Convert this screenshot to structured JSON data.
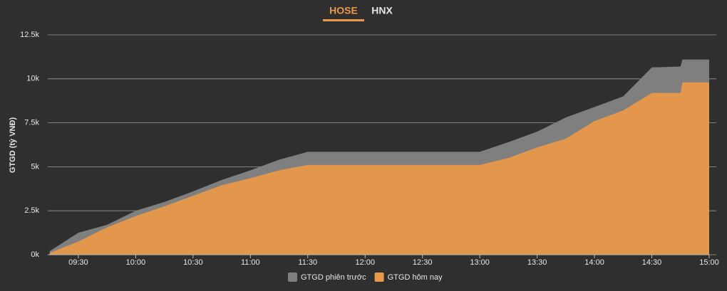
{
  "tabs": [
    "HOSE",
    "HNX"
  ],
  "chart_data": {
    "type": "area",
    "y_label": "GTGD (tỷ VNĐ)",
    "x": [
      "09:15",
      "09:30",
      "09:45",
      "10:00",
      "10:15",
      "10:30",
      "10:45",
      "11:00",
      "11:15",
      "11:30",
      "13:00",
      "13:15",
      "13:30",
      "13:45",
      "14:00",
      "14:15",
      "14:30",
      "14:45",
      "14:46",
      "15:00"
    ],
    "xlim": [
      "09:14",
      "15:00"
    ],
    "xticks": [
      "09:30",
      "10:00",
      "10:30",
      "11:00",
      "11:30",
      "12:00",
      "12:30",
      "13:00",
      "13:30",
      "14:00",
      "14:30",
      "15:00"
    ],
    "ylim": [
      0,
      12500
    ],
    "yticks": [
      {
        "value": 0,
        "label": "0k"
      },
      {
        "value": 2500,
        "label": "2.5k"
      },
      {
        "value": 5000,
        "label": "5k"
      },
      {
        "value": 7500,
        "label": "7.5k"
      },
      {
        "value": 10000,
        "label": "10k"
      },
      {
        "value": 12500,
        "label": "12.5k"
      }
    ],
    "grid": true,
    "legend": "bottom",
    "series": [
      {
        "name": "GTGD phiên trước",
        "color": "#7f7f7f",
        "values": [
          200,
          1250,
          1700,
          2500,
          3000,
          3600,
          4250,
          4800,
          5400,
          5850,
          5850,
          6400,
          7000,
          7800,
          8400,
          9000,
          10650,
          10700,
          11100,
          11100
        ]
      },
      {
        "name": "GTGD hôm nay",
        "color": "#e8994a",
        "values": [
          100,
          750,
          1550,
          2200,
          2750,
          3350,
          3950,
          4350,
          4800,
          5100,
          5100,
          5500,
          6100,
          6600,
          7600,
          8200,
          9200,
          9200,
          9800,
          9800
        ]
      }
    ]
  }
}
